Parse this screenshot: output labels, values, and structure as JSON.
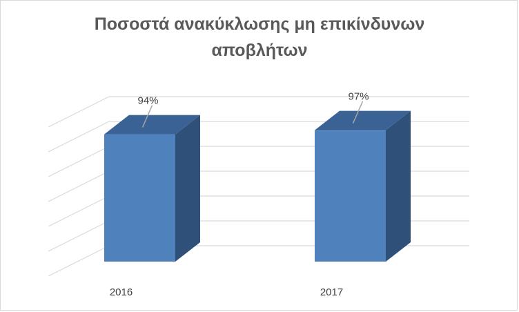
{
  "chart_data": {
    "type": "bar",
    "title_lines": [
      "Ποσοστά ανακύκλωσης μη επικίνδυνων",
      "αποβλήτων"
    ],
    "categories": [
      "2016",
      "2017"
    ],
    "values": [
      0.94,
      0.97
    ],
    "data_labels": [
      "94%",
      "97%"
    ],
    "ylim": [
      0,
      1.2
    ],
    "grid": true,
    "three_d": true,
    "legend": "none",
    "colors": {
      "front": "#4f81bd",
      "side": "#2f5079",
      "top": "#3b6294",
      "grid": "#d9d9d9",
      "leader": "#a6a6a6"
    }
  }
}
